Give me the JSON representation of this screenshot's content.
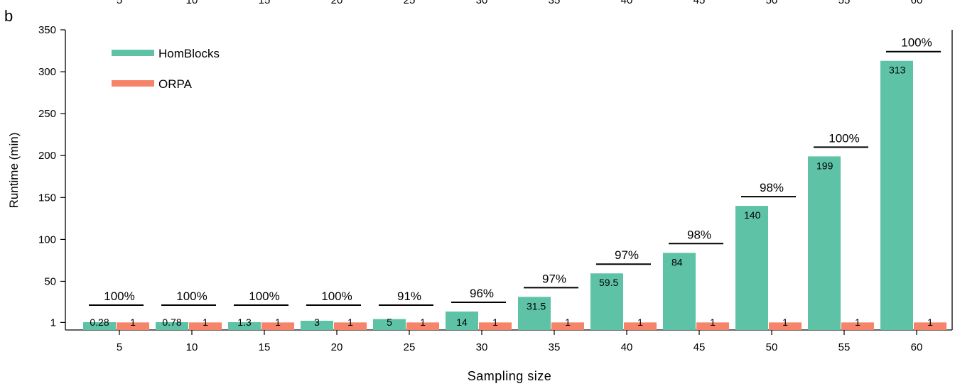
{
  "panel_label": "b",
  "top_cropped_ticks": [
    "5",
    "10",
    "15",
    "20",
    "25",
    "30",
    "35",
    "40",
    "45",
    "50",
    "55",
    "60"
  ],
  "colors": {
    "homblocks": "#5ec3a6",
    "orpa": "#f6846a",
    "axis": "#000000",
    "bracket": "#000000"
  },
  "chart_data": {
    "type": "bar",
    "xlabel": "Sampling size",
    "ylabel": "Runtime (min)",
    "categories": [
      "5",
      "10",
      "15",
      "20",
      "25",
      "30",
      "35",
      "40",
      "45",
      "50",
      "55",
      "60"
    ],
    "yticks": [
      "1",
      "50",
      "100",
      "150",
      "200",
      "250",
      "300",
      "350"
    ],
    "ytick_values": [
      1,
      50,
      100,
      150,
      200,
      250,
      300,
      350
    ],
    "ylim": [
      -8,
      350
    ],
    "legend_position": "top-left",
    "series": [
      {
        "name": "HomBlocks",
        "values": [
          0.28,
          0.78,
          1.3,
          3,
          5,
          14,
          31.5,
          59.5,
          84,
          140,
          199,
          313
        ],
        "labels": [
          "0.28",
          "0.78",
          "1.3",
          "3",
          "5",
          "14",
          "31.5",
          "59.5",
          "84",
          "140",
          "199",
          "313"
        ]
      },
      {
        "name": "ORPA",
        "values": [
          1,
          1,
          1,
          1,
          1,
          1,
          1,
          1,
          1,
          1,
          1,
          1
        ],
        "labels": [
          "1",
          "1",
          "1",
          "1",
          "1",
          "1",
          "1",
          "1",
          "1",
          "1",
          "1",
          "1"
        ]
      }
    ],
    "annotations": [
      "100%",
      "100%",
      "100%",
      "100%",
      "91%",
      "96%",
      "97%",
      "97%",
      "98%",
      "98%",
      "100%",
      "100%"
    ]
  }
}
